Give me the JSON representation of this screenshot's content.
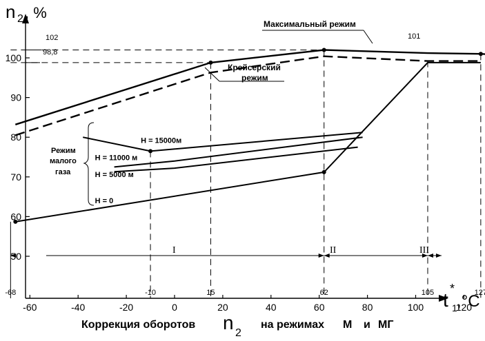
{
  "chart_data": {
    "type": "line",
    "y_axis_title": "n",
    "y_axis_subscript": "2",
    "y_axis_unit": ", %",
    "x_axis_title": "t",
    "x_axis_subscript": "1",
    "x_axis_superscript": "*",
    "x_axis_unit": ",°C",
    "caption_prefix": "Коррекция оборотов",
    "caption_n": "n",
    "caption_sub": "2",
    "caption_suffix": "на режимах",
    "caption_m": "М",
    "caption_and": "и",
    "caption_mg": "МГ",
    "xlim": [
      -70,
      135
    ],
    "ylim": [
      43,
      106
    ],
    "x_ticks": [
      -60,
      -40,
      -20,
      0,
      20,
      40,
      60,
      80,
      100,
      120
    ],
    "y_ticks": [
      50,
      60,
      70,
      80,
      90,
      100
    ],
    "special_x_labels": [
      "-68",
      "-10",
      "15",
      "62",
      "105",
      "127"
    ],
    "special_x_values": [
      -68,
      -10,
      15,
      62,
      105,
      127
    ],
    "reference_y_labels": [
      "102",
      "98,8",
      "101"
    ],
    "series": [
      {
        "name": "Максимальный режим",
        "x": [
          -66,
          15,
          62,
          105,
          127,
          133
        ],
        "y": [
          83.2,
          98.8,
          102,
          101.2,
          101,
          100.8
        ]
      },
      {
        "name": "Крейсерский режим",
        "x": [
          -66,
          15,
          62,
          105,
          127
        ],
        "y": [
          80.5,
          96.3,
          100.4,
          99.2,
          99.2
        ]
      },
      {
        "name": "H = 15000м",
        "x": [
          -38,
          -10,
          78
        ],
        "y": [
          80,
          76.5,
          81.2
        ]
      },
      {
        "name": "H = 11000 м",
        "x": [
          -25,
          0,
          78
        ],
        "y": [
          72.5,
          74,
          80
        ]
      },
      {
        "name": "H = 5000 м",
        "x": [
          -25,
          0,
          76
        ],
        "y": [
          71.3,
          72.2,
          77.5
        ]
      },
      {
        "name": "H = 0",
        "x": [
          -66,
          62,
          105,
          127
        ],
        "y": [
          58.7,
          71.2,
          98.8,
          98.8
        ]
      }
    ],
    "annotations": {
      "max_label": "Максимальный режим",
      "cruise_label_1": "Крейсерский",
      "cruise_label_2": "режим",
      "idle_label_1": "Режим",
      "idle_label_2": "малого",
      "idle_label_3": "газа",
      "zone_1": "I",
      "zone_2": "II",
      "zone_3": "III"
    }
  }
}
